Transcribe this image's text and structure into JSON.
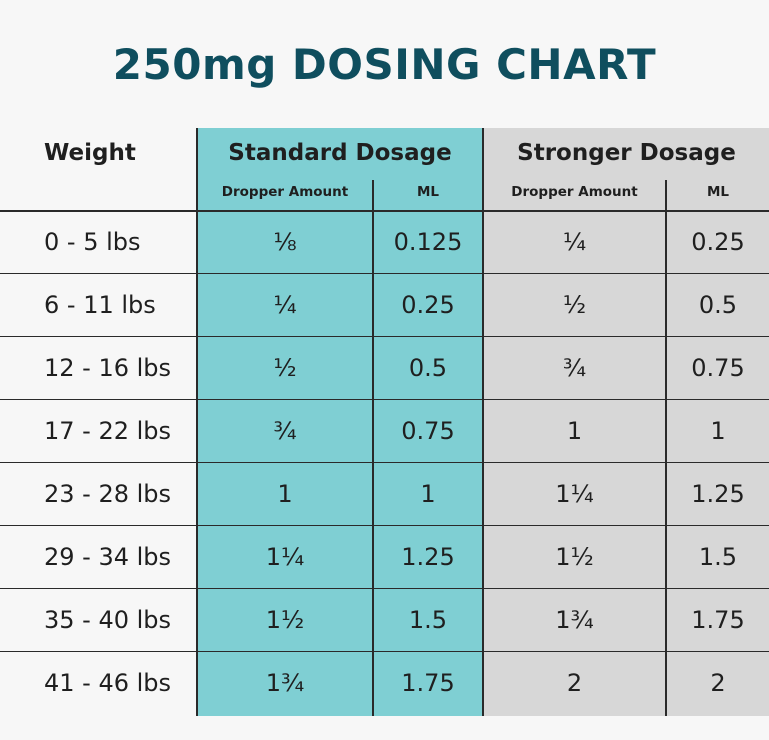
{
  "title": "250mg DOSING CHART",
  "colors": {
    "title": "#0f4e5e",
    "standard_band": "#7fcfd3",
    "stronger_band": "#d7d7d7"
  },
  "headers": {
    "weight": "Weight",
    "standard": "Standard Dosage",
    "stronger": "Stronger Dosage",
    "dropper_amount": "Dropper Amount",
    "ml": "ML"
  },
  "rows": [
    {
      "weight": "0 - 5 lbs",
      "std_dropper": "⅛",
      "std_ml": "0.125",
      "str_dropper": "¼",
      "str_ml": "0.25"
    },
    {
      "weight": "6 - 11 lbs",
      "std_dropper": "¼",
      "std_ml": "0.25",
      "str_dropper": "½",
      "str_ml": "0.5"
    },
    {
      "weight": "12 - 16 lbs",
      "std_dropper": "½",
      "std_ml": "0.5",
      "str_dropper": "¾",
      "str_ml": "0.75"
    },
    {
      "weight": "17 - 22 lbs",
      "std_dropper": "¾",
      "std_ml": "0.75",
      "str_dropper": "1",
      "str_ml": "1"
    },
    {
      "weight": "23 - 28 lbs",
      "std_dropper": "1",
      "std_ml": "1",
      "str_dropper": "1¼",
      "str_ml": "1.25"
    },
    {
      "weight": "29 - 34 lbs",
      "std_dropper": "1¼",
      "std_ml": "1.25",
      "str_dropper": "1½",
      "str_ml": "1.5"
    },
    {
      "weight": "35 - 40 lbs",
      "std_dropper": "1½",
      "std_ml": "1.5",
      "str_dropper": "1¾",
      "str_ml": "1.75"
    },
    {
      "weight": "41 - 46 lbs",
      "std_dropper": "1¾",
      "std_ml": "1.75",
      "str_dropper": "2",
      "str_ml": "2"
    }
  ]
}
